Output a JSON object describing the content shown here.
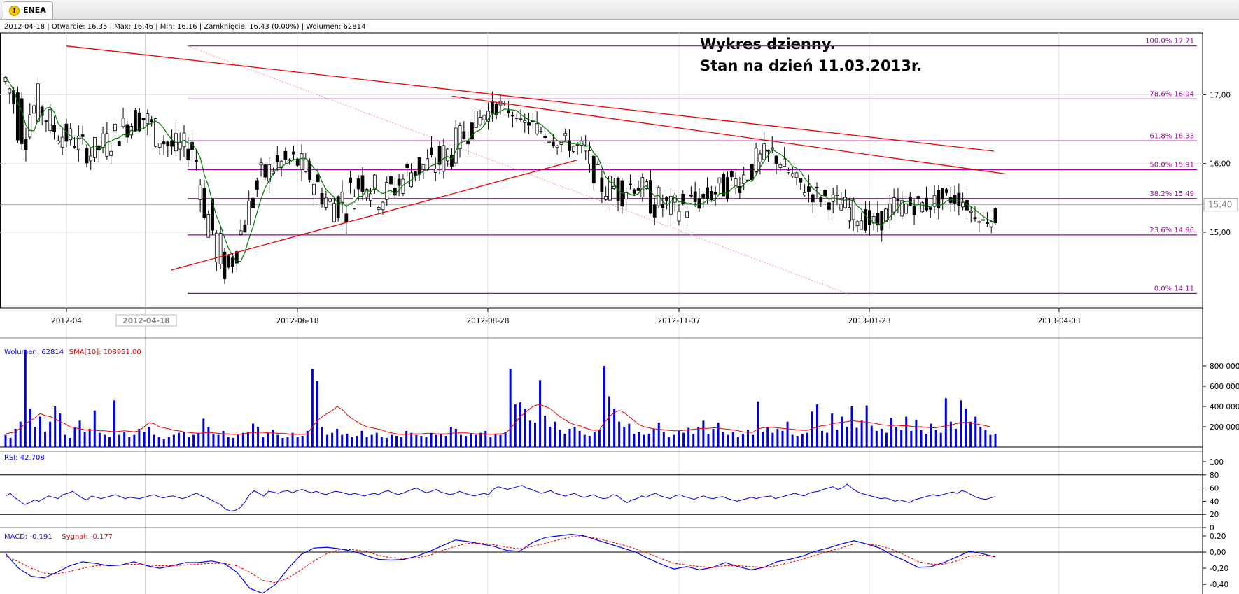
{
  "tab": {
    "label": "ENEA",
    "icon": "warning-icon"
  },
  "info_line": "2012-04-18 | Otwarcie: 16.35 | Max: 16.46 | Min: 16.16 | Zamknięcie: 16.43 (0.00%)  | Wolumen: 62814",
  "title_lines": [
    "Wykres dzienny.",
    "Stan na dzień 11.03.2013r."
  ],
  "colors": {
    "line_red": "#ee0000",
    "fib_magenta": "#aa00aa",
    "sma_green": "#007700",
    "volume_blue": "#0000dd",
    "sma_red": "#ee0000",
    "rsi_blue": "#0000ee"
  },
  "chart_data": [
    {
      "type": "candlestick",
      "x_ticks": [
        "2012-04",
        "2012-06-18",
        "2012-08-28",
        "2012-11-07",
        "2013-01-23",
        "2013-04-03"
      ],
      "crosshair_label": "2012-04-18",
      "y_ticks": [
        "17,00",
        "16,00",
        "15,00"
      ],
      "ylim": [
        13.9,
        17.9
      ],
      "last_price_label": "15,40",
      "ohlc_path": [
        [
          16.8,
          17.6
        ],
        [
          16.1,
          17.3
        ],
        [
          16.6,
          17.1
        ],
        [
          16.3,
          16.6
        ],
        [
          16.2,
          16.5
        ],
        [
          16.0,
          16.3
        ],
        [
          16.1,
          16.5
        ],
        [
          16.4,
          16.7
        ],
        [
          16.5,
          16.9
        ],
        [
          16.2,
          16.6
        ],
        [
          16.0,
          16.4
        ],
        [
          16.1,
          16.4
        ],
        [
          14.6,
          15.6
        ],
        [
          14.2,
          14.6
        ],
        [
          14.9,
          15.4
        ],
        [
          15.6,
          16.0
        ],
        [
          15.9,
          16.1
        ],
        [
          15.9,
          16.2
        ],
        [
          15.6,
          16.0
        ],
        [
          15.2,
          15.6
        ],
        [
          15.2,
          15.8
        ],
        [
          15.6,
          16.0
        ],
        [
          15.3,
          15.7
        ],
        [
          15.5,
          15.9
        ],
        [
          15.7,
          16.2
        ],
        [
          15.7,
          16.2
        ],
        [
          15.9,
          16.4
        ],
        [
          16.3,
          16.6
        ],
        [
          16.6,
          16.8
        ],
        [
          16.8,
          16.9
        ],
        [
          16.7,
          16.6
        ],
        [
          16.5,
          16.6
        ],
        [
          16.3,
          16.4
        ],
        [
          16.2,
          16.4
        ],
        [
          16.0,
          16.3
        ],
        [
          15.5,
          15.8
        ],
        [
          15.4,
          15.9
        ],
        [
          15.6,
          15.8
        ],
        [
          15.2,
          15.7
        ],
        [
          15.2,
          15.5
        ],
        [
          15.2,
          15.6
        ],
        [
          15.4,
          15.6
        ],
        [
          15.5,
          15.8
        ],
        [
          15.6,
          15.9
        ],
        [
          15.8,
          16.2
        ],
        [
          16.0,
          16.3
        ],
        [
          15.8,
          15.9
        ],
        [
          15.5,
          15.7
        ],
        [
          15.4,
          15.6
        ],
        [
          15.3,
          15.5
        ],
        [
          15.1,
          15.4
        ],
        [
          15.0,
          15.2
        ],
        [
          15.2,
          15.5
        ],
        [
          15.3,
          15.5
        ],
        [
          15.3,
          15.5
        ],
        [
          15.4,
          15.6
        ],
        [
          15.4,
          15.6
        ],
        [
          15.2,
          15.1
        ],
        [
          15.1,
          15.3
        ]
      ],
      "fibonacci": [
        {
          "label": "100.0% 17.71",
          "value": 17.71
        },
        {
          "label": "78.6% 16.94",
          "value": 16.94
        },
        {
          "label": "61.8% 16.33",
          "value": 16.33
        },
        {
          "label": "50.0% 15.91",
          "value": 15.91
        },
        {
          "label": "38.2% 15.49",
          "value": 15.49
        },
        {
          "label": "23.6% 14.96",
          "value": 14.96
        },
        {
          "label": "0.0% 14.11",
          "value": 14.11
        }
      ],
      "trendlines": [
        {
          "from": [
            "2012-04-18",
            17.71
          ],
          "to": [
            "2013-03-11",
            16.18
          ]
        },
        {
          "from": [
            "2012-09-01",
            16.98
          ],
          "to": [
            "2013-03-15",
            15.85
          ]
        },
        {
          "from": [
            "2012-05-25",
            14.45
          ],
          "to": [
            "2012-10-15",
            16.05
          ]
        }
      ]
    },
    {
      "type": "bar",
      "legend": [
        {
          "text": "Wolumen: 62814",
          "color": "#0000ee"
        },
        {
          "text": "SMA[10]: 108951.00",
          "color": "#ee0000"
        }
      ],
      "y_ticks": [
        "800 000",
        "600 000",
        "400 000",
        "200 000"
      ],
      "ylim": [
        0,
        1000000
      ],
      "values": [
        120000,
        90000,
        180000,
        250000,
        960000,
        380000,
        200000,
        300000,
        150000,
        250000,
        400000,
        330000,
        120000,
        90000,
        200000,
        260000,
        150000,
        180000,
        360000,
        140000,
        120000,
        100000,
        460000,
        120000,
        150000,
        100000,
        120000,
        180000,
        150000,
        200000,
        120000,
        100000,
        80000,
        100000,
        120000,
        140000,
        150000,
        100000,
        120000,
        140000,
        280000,
        200000,
        130000,
        120000,
        160000,
        100000,
        90000,
        120000,
        140000,
        150000,
        230000,
        200000,
        100000,
        140000,
        170000,
        120000,
        90000,
        100000,
        140000,
        100000,
        110000,
        160000,
        770000,
        650000,
        200000,
        120000,
        140000,
        180000,
        120000,
        130000,
        100000,
        110000,
        160000,
        100000,
        120000,
        140000,
        100000,
        90000,
        120000,
        110000,
        100000,
        160000,
        140000,
        120000,
        110000,
        100000,
        140000,
        120000,
        130000,
        110000,
        200000,
        180000,
        120000,
        110000,
        130000,
        120000,
        140000,
        160000,
        100000,
        130000,
        120000,
        150000,
        770000,
        420000,
        440000,
        380000,
        260000,
        240000,
        660000,
        310000,
        200000,
        250000,
        170000,
        130000,
        180000,
        200000,
        160000,
        120000,
        110000,
        150000,
        170000,
        800000,
        500000,
        380000,
        250000,
        200000,
        230000,
        130000,
        150000,
        120000,
        130000,
        180000,
        240000,
        150000,
        100000,
        120000,
        160000,
        140000,
        190000,
        130000,
        200000,
        260000,
        130000,
        180000,
        240000,
        150000,
        120000,
        150000,
        100000,
        130000,
        170000,
        120000,
        450000,
        150000,
        200000,
        140000,
        180000,
        160000,
        250000,
        120000,
        110000,
        130000,
        140000,
        350000,
        420000,
        160000,
        140000,
        330000,
        170000,
        300000,
        200000,
        400000,
        190000,
        260000,
        410000,
        210000,
        160000,
        180000,
        140000,
        290000,
        200000,
        170000,
        300000,
        160000,
        270000,
        170000,
        130000,
        230000,
        170000,
        140000,
        480000,
        250000,
        180000,
        460000,
        380000,
        250000,
        300000,
        200000,
        170000,
        120000,
        130000
      ],
      "sma": [
        130000,
        140000,
        150000,
        190000,
        230000,
        260000,
        290000,
        330000,
        310000,
        300000,
        280000,
        250000,
        230000,
        200000,
        190000,
        180000,
        170000,
        170000,
        165000,
        160000,
        160000,
        155000,
        150000,
        155000,
        160000,
        155000,
        150000,
        160000,
        200000,
        240000,
        230000,
        200000,
        190000,
        180000,
        165000,
        160000,
        150000,
        145000,
        140000,
        135000,
        140000,
        145000,
        140000,
        135000,
        130000,
        130000,
        125000,
        125000,
        130000,
        140000,
        140000,
        145000,
        145000,
        140000,
        140000,
        135000,
        135000,
        130000,
        125000,
        125000,
        125000,
        130000,
        200000,
        260000,
        300000,
        330000,
        360000,
        400000,
        370000,
        320000,
        280000,
        250000,
        220000,
        200000,
        190000,
        180000,
        170000,
        150000,
        140000,
        130000,
        125000,
        125000,
        130000,
        130000,
        130000,
        135000,
        135000,
        130000,
        130000,
        130000,
        135000,
        140000,
        140000,
        140000,
        135000,
        130000,
        130000,
        130000,
        125000,
        130000,
        130000,
        135000,
        180000,
        240000,
        300000,
        340000,
        380000,
        410000,
        420000,
        400000,
        380000,
        340000,
        300000,
        270000,
        240000,
        220000,
        210000,
        190000,
        175000,
        165000,
        170000,
        240000,
        300000,
        340000,
        360000,
        340000,
        300000,
        260000,
        220000,
        200000,
        190000,
        180000,
        175000,
        170000,
        165000,
        160000,
        160000,
        165000,
        170000,
        175000,
        180000,
        185000,
        185000,
        190000,
        190000,
        180000,
        175000,
        170000,
        160000,
        150000,
        145000,
        145000,
        180000,
        190000,
        195000,
        195000,
        190000,
        185000,
        180000,
        175000,
        170000,
        165000,
        165000,
        180000,
        200000,
        210000,
        215000,
        225000,
        240000,
        245000,
        250000,
        260000,
        255000,
        250000,
        245000,
        240000,
        230000,
        220000,
        215000,
        210000,
        215000,
        210000,
        210000,
        205000,
        200000,
        200000,
        195000,
        190000,
        190000,
        200000,
        210000,
        215000,
        230000,
        240000,
        245000,
        240000,
        230000,
        220000,
        210000,
        200000
      ]
    },
    {
      "type": "line",
      "legend": [
        {
          "text": "RSI: 42.708",
          "color": "#0000ee"
        }
      ],
      "y_ticks": [
        "100",
        "80",
        "60",
        "40",
        "20",
        "0"
      ],
      "ylim": [
        0,
        100
      ],
      "guide_lines": [
        80,
        20
      ],
      "values": [
        48,
        52,
        45,
        40,
        35,
        38,
        42,
        40,
        44,
        48,
        46,
        44,
        50,
        52,
        55,
        50,
        45,
        42,
        48,
        46,
        44,
        46,
        48,
        50,
        47,
        44,
        46,
        45,
        44,
        46,
        48,
        50,
        47,
        45,
        47,
        48,
        46,
        44,
        46,
        50,
        52,
        48,
        46,
        42,
        38,
        35,
        28,
        25,
        26,
        30,
        38,
        50,
        56,
        52,
        48,
        55,
        54,
        52,
        55,
        56,
        53,
        56,
        58,
        55,
        53,
        55,
        52,
        50,
        53,
        55,
        54,
        52,
        50,
        52,
        50,
        48,
        50,
        52,
        50,
        54,
        56,
        53,
        50,
        52,
        55,
        58,
        60,
        56,
        53,
        55,
        58,
        54,
        52,
        50,
        52,
        55,
        52,
        50,
        48,
        50,
        52,
        50,
        58,
        62,
        60,
        58,
        60,
        62,
        64,
        60,
        58,
        55,
        52,
        54,
        56,
        52,
        50,
        48,
        50,
        52,
        48,
        46,
        48,
        50,
        46,
        44,
        45,
        50,
        48,
        42,
        38,
        42,
        44,
        48,
        46,
        50,
        52,
        48,
        46,
        44,
        48,
        50,
        47,
        45,
        43,
        46,
        48,
        45,
        44,
        46,
        47,
        44,
        42,
        40,
        42,
        44,
        46,
        44,
        46,
        47,
        48,
        44,
        46,
        48,
        50,
        52,
        50,
        48,
        52,
        54,
        55,
        58,
        60,
        62,
        58,
        60,
        66,
        60,
        55,
        52,
        50,
        48,
        46,
        44,
        45,
        43,
        40,
        42,
        40,
        38,
        42,
        44,
        46,
        48,
        50,
        48,
        50,
        52,
        54,
        52,
        56,
        54,
        50,
        46,
        44,
        43,
        45,
        47
      ]
    },
    {
      "type": "line",
      "legend": [
        {
          "text": "MACD: -0.191",
          "color": "#0000ee"
        },
        {
          "text": "Sygnał: -0.177",
          "color": "#ee0000"
        }
      ],
      "y_ticks": [
        "0,20",
        "0,00",
        "-0,20",
        "-0,40"
      ],
      "ylim": [
        -0.52,
        0.26
      ],
      "macd": [
        -0.02,
        -0.2,
        -0.3,
        -0.32,
        -0.25,
        -0.17,
        -0.12,
        -0.14,
        -0.17,
        -0.16,
        -0.12,
        -0.17,
        -0.2,
        -0.17,
        -0.13,
        -0.13,
        -0.11,
        -0.14,
        -0.25,
        -0.45,
        -0.51,
        -0.4,
        -0.2,
        -0.03,
        0.05,
        0.06,
        0.04,
        0.01,
        -0.04,
        -0.09,
        -0.1,
        -0.09,
        -0.05,
        0.01,
        0.08,
        0.15,
        0.13,
        0.1,
        0.07,
        0.02,
        0.01,
        0.12,
        0.18,
        0.2,
        0.22,
        0.2,
        0.15,
        0.1,
        0.05,
        0.0,
        -0.08,
        -0.15,
        -0.21,
        -0.18,
        -0.22,
        -0.19,
        -0.13,
        -0.18,
        -0.22,
        -0.19,
        -0.12,
        -0.09,
        -0.05,
        0.01,
        0.05,
        0.1,
        0.14,
        0.1,
        0.05,
        -0.04,
        -0.11,
        -0.19,
        -0.18,
        -0.13,
        -0.06,
        0.01,
        -0.02,
        -0.06
      ],
      "signal": [
        -0.05,
        -0.12,
        -0.2,
        -0.26,
        -0.27,
        -0.24,
        -0.2,
        -0.17,
        -0.16,
        -0.16,
        -0.15,
        -0.16,
        -0.17,
        -0.17,
        -0.16,
        -0.15,
        -0.14,
        -0.14,
        -0.17,
        -0.25,
        -0.35,
        -0.38,
        -0.32,
        -0.22,
        -0.11,
        -0.02,
        0.03,
        0.03,
        0.01,
        -0.04,
        -0.07,
        -0.08,
        -0.07,
        -0.04,
        0.02,
        0.07,
        0.11,
        0.11,
        0.09,
        0.06,
        0.04,
        0.07,
        0.11,
        0.15,
        0.19,
        0.19,
        0.17,
        0.13,
        0.09,
        0.04,
        -0.02,
        -0.08,
        -0.14,
        -0.16,
        -0.18,
        -0.19,
        -0.17,
        -0.17,
        -0.18,
        -0.19,
        -0.17,
        -0.13,
        -0.09,
        -0.04,
        0.01,
        0.05,
        0.1,
        0.1,
        0.08,
        0.03,
        -0.04,
        -0.12,
        -0.15,
        -0.15,
        -0.11,
        -0.05,
        -0.04,
        -0.05
      ]
    }
  ]
}
